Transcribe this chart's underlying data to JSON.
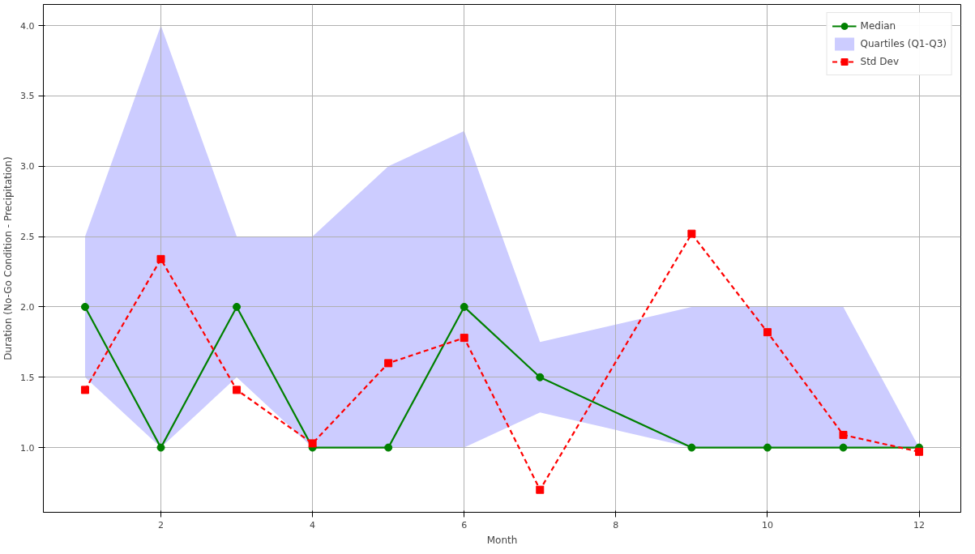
{
  "chart_data": {
    "type": "line",
    "xlabel": "Month",
    "ylabel": "Duration (No-Go Condition - Precipitation)",
    "x": [
      1,
      2,
      3,
      4,
      5,
      6,
      7,
      9,
      10,
      11,
      12
    ],
    "series": [
      {
        "name": "Median",
        "color": "#008000",
        "marker": "circle",
        "line_style": "solid",
        "values": [
          2,
          1,
          2,
          1,
          1,
          2,
          1.5,
          1,
          1,
          1,
          1
        ]
      },
      {
        "name": "Quartiles (Q1-Q3)",
        "type": "area",
        "color": "#ccccff",
        "values": [
          null,
          null,
          null,
          null,
          null,
          null,
          null,
          null,
          null,
          null,
          null
        ],
        "lower": [
          1.5,
          1,
          1.5,
          1,
          1,
          1,
          1.25,
          1,
          1,
          1,
          1
        ],
        "upper": [
          2.5,
          4,
          2.5,
          2.5,
          3,
          3.25,
          1.75,
          2,
          2,
          2,
          1
        ]
      },
      {
        "name": "Std Dev",
        "color": "#ff0000",
        "marker": "square",
        "line_style": "dashed",
        "values": [
          1.41,
          2.34,
          1.41,
          1.03,
          1.6,
          1.78,
          0.7,
          2.52,
          1.82,
          1.09,
          0.97
        ]
      }
    ],
    "xlim": [
      0.45,
      12.55
    ],
    "ylim": [
      0.54,
      4.15
    ],
    "xticks": [
      2,
      4,
      6,
      8,
      10,
      12
    ],
    "yticks": [
      {
        "value": 1,
        "label": "1.0"
      },
      {
        "value": 1.5,
        "label": "1.5"
      },
      {
        "value": 2,
        "label": "2.0"
      },
      {
        "value": 2.5,
        "label": "2.5"
      },
      {
        "value": 3,
        "label": "3.0"
      },
      {
        "value": 3.5,
        "label": "3.5"
      },
      {
        "value": 4,
        "label": "4.0"
      }
    ],
    "grid": true,
    "legend": "top right"
  }
}
